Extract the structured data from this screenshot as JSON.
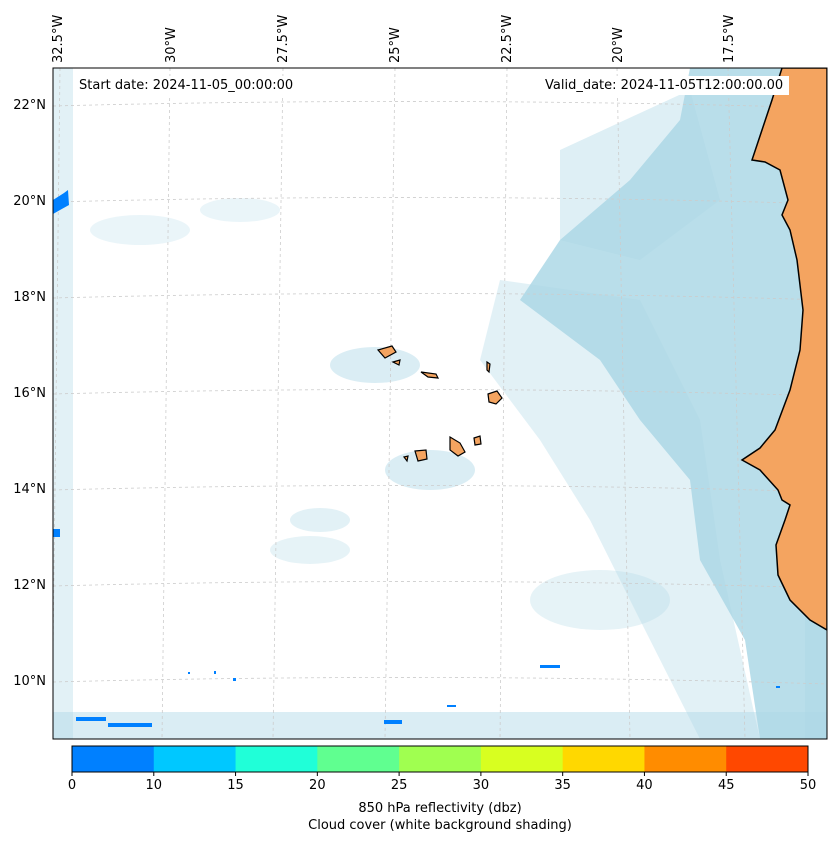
{
  "map": {
    "start_date_label": "Start date: 2024-11-05_00:00:00",
    "valid_date_label": "Valid_date: 2024-11-05T12:00:00.00",
    "lon_labels": [
      "32.5°W",
      "30°W",
      "27.5°W",
      "25°W",
      "22.5°W",
      "20°W",
      "17.5°W"
    ],
    "lat_labels": [
      "22°N",
      "20°N",
      "18°N",
      "16°N",
      "14°N",
      "12°N",
      "10°N"
    ],
    "colors": {
      "land": "#f4a460",
      "cloud": "#add8e6",
      "coastline": "#000000",
      "grid": "#cccccc",
      "reflectivity_low": "#0080ff"
    }
  },
  "colorbar": {
    "ticks": [
      "0",
      "10",
      "15",
      "20",
      "25",
      "30",
      "35",
      "40",
      "45",
      "50"
    ],
    "colors": [
      "#0080ff",
      "#00c8ff",
      "#20ffd8",
      "#60ff90",
      "#a0ff50",
      "#d8ff20",
      "#ffd800",
      "#ff8c00",
      "#ff4800"
    ],
    "label_line1": "850 hPa reflectivity (dbz)",
    "label_line2": "Cloud cover (white background shading)"
  }
}
